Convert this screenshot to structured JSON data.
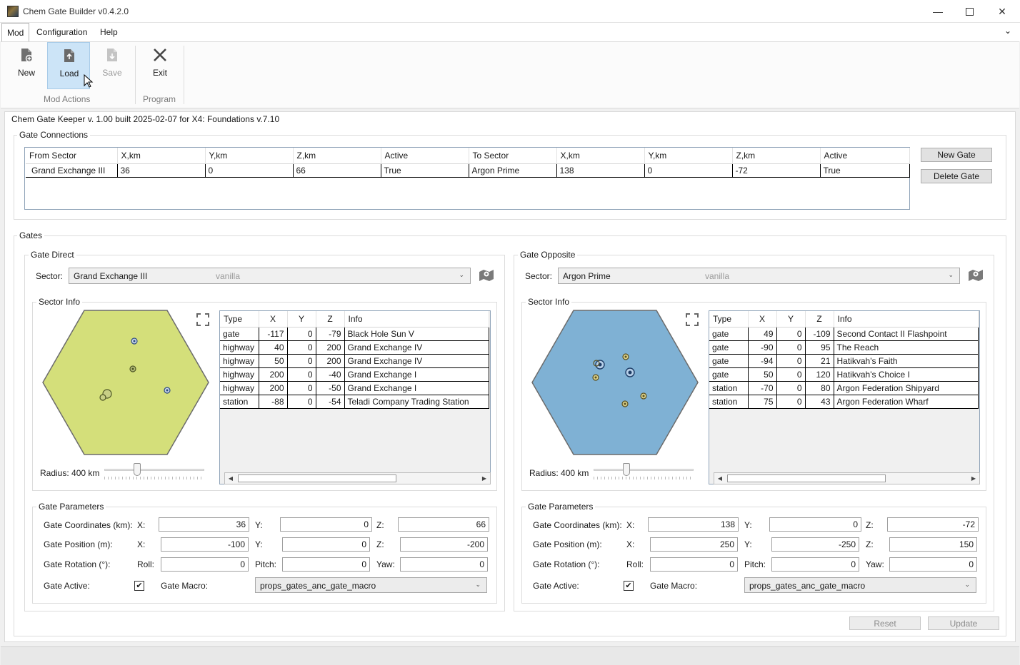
{
  "window": {
    "title": "Chem Gate Builder v0.4.2.0"
  },
  "menu": {
    "mod": "Mod",
    "configuration": "Configuration",
    "help": "Help"
  },
  "ribbon": {
    "new": "New",
    "load": "Load",
    "save": "Save",
    "exit": "Exit",
    "group_mod_actions": "Mod Actions",
    "group_program": "Program"
  },
  "info_line": "Chem Gate Keeper v. 1.00 built 2025-02-07 for X4: Foundations v.7.10",
  "connections": {
    "title": "Gate Connections",
    "columns": [
      "From Sector",
      "X,km",
      "Y,km",
      "Z,km",
      "Active",
      "To Sector",
      "X,km",
      "Y,km",
      "Z,km",
      "Active"
    ],
    "rows": [
      [
        "Grand Exchange III",
        "36",
        "0",
        "66",
        "True",
        "Argon Prime",
        "138",
        "0",
        "-72",
        "True"
      ]
    ],
    "new_gate": "New Gate",
    "delete_gate": "Delete Gate"
  },
  "gates_title": "Gates",
  "common": {
    "sector_label": "Sector:",
    "sector_info": "Sector Info",
    "params_title": "Gate Parameters",
    "coord_label": "Gate Coordinates (km):",
    "pos_label": "Gate Position (m):",
    "rot_label": "Gate Rotation (°):",
    "active_label": "Gate Active:",
    "macro_label": "Gate Macro:",
    "x": "X:",
    "y": "Y:",
    "z": "Z:",
    "roll": "Roll:",
    "pitch": "Pitch:",
    "yaw": "Yaw:",
    "col_type": "Type",
    "col_x": "X",
    "col_y": "Y",
    "col_z": "Z",
    "col_info": "Info"
  },
  "direct": {
    "title": "Gate Direct",
    "sector": "Grand Exchange III",
    "source": "vanilla",
    "hex_color": "#d4df7a",
    "radius": "Radius: 400 km",
    "objects": [
      [
        "gate",
        "-117",
        "0",
        "-79",
        "Black Hole Sun V"
      ],
      [
        "highway",
        "40",
        "0",
        "200",
        "Grand Exchange IV"
      ],
      [
        "highway",
        "50",
        "0",
        "200",
        "Grand Exchange IV"
      ],
      [
        "highway",
        "200",
        "0",
        "-40",
        "Grand Exchange I"
      ],
      [
        "highway",
        "200",
        "0",
        "-50",
        "Grand Exchange I"
      ],
      [
        "station",
        "-88",
        "0",
        "-54",
        "Teladi Company Trading Station"
      ]
    ],
    "coord": [
      "36",
      "0",
      "66"
    ],
    "pos": [
      "-100",
      "0",
      "-200"
    ],
    "rot": [
      "0",
      "0",
      "0"
    ],
    "macro": "props_gates_anc_gate_macro",
    "active_mark": "✔"
  },
  "opposite": {
    "title": "Gate Opposite",
    "sector": "Argon Prime",
    "source": "vanilla",
    "hex_color": "#7fb1d4",
    "radius": "Radius: 400 km",
    "objects": [
      [
        "gate",
        "49",
        "0",
        "-109",
        "Second Contact II Flashpoint"
      ],
      [
        "gate",
        "-90",
        "0",
        "95",
        "The Reach"
      ],
      [
        "gate",
        "-94",
        "0",
        "21",
        "Hatikvah's Faith"
      ],
      [
        "gate",
        "50",
        "0",
        "120",
        "Hatikvah's Choice I"
      ],
      [
        "station",
        "-70",
        "0",
        "80",
        "Argon Federation Shipyard"
      ],
      [
        "station",
        "75",
        "0",
        "43",
        "Argon Federation Wharf"
      ]
    ],
    "coord": [
      "138",
      "0",
      "-72"
    ],
    "pos": [
      "250",
      "-250",
      "150"
    ],
    "rot": [
      "0",
      "0",
      "0"
    ],
    "macro": "props_gates_anc_gate_macro",
    "active_mark": "✔"
  },
  "footer": {
    "reset": "Reset",
    "update": "Update"
  }
}
